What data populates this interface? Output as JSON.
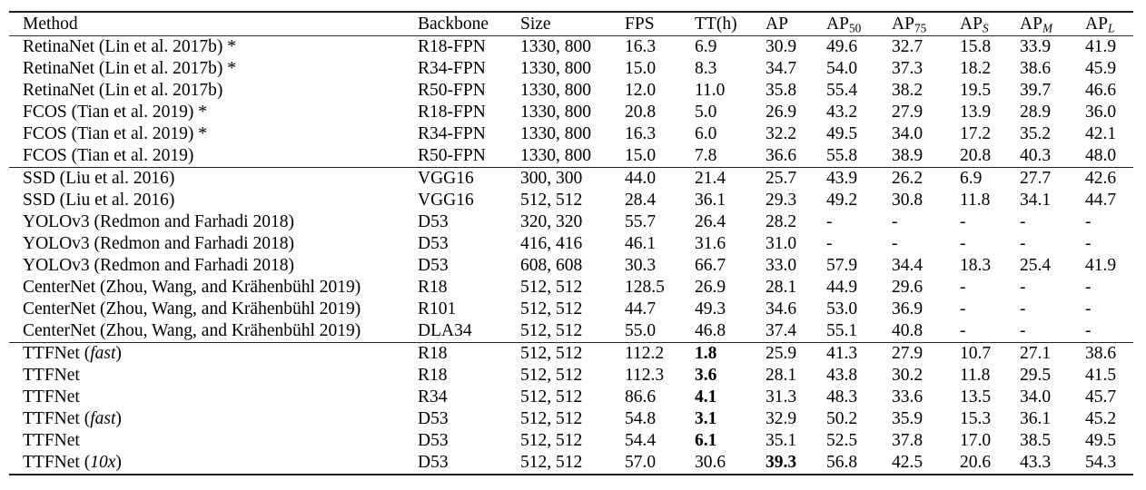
{
  "table": {
    "columns": [
      {
        "key": "method",
        "label": "Method"
      },
      {
        "key": "backbone",
        "label": "Backbone"
      },
      {
        "key": "size",
        "label": "Size"
      },
      {
        "key": "fps",
        "label": "FPS"
      },
      {
        "key": "tt",
        "label": "TT(h)"
      },
      {
        "key": "ap",
        "label": "AP"
      },
      {
        "key": "ap50",
        "label": "AP",
        "sub": "50",
        "sub_italic": false
      },
      {
        "key": "ap75",
        "label": "AP",
        "sub": "75",
        "sub_italic": false
      },
      {
        "key": "aps",
        "label": "AP",
        "sub": "S",
        "sub_italic": true
      },
      {
        "key": "apm",
        "label": "AP",
        "sub": "M",
        "sub_italic": true
      },
      {
        "key": "apl",
        "label": "AP",
        "sub": "L",
        "sub_italic": true
      }
    ],
    "groups": [
      {
        "rows": [
          {
            "method": [
              {
                "t": "RetinaNet (Lin et al. 2017b) *"
              }
            ],
            "cells": [
              "R18-FPN",
              "1330, 800",
              "16.3",
              "6.9",
              "30.9",
              "49.6",
              "32.7",
              "15.8",
              "33.9",
              "41.9"
            ],
            "bold_cells": []
          },
          {
            "method": [
              {
                "t": "RetinaNet (Lin et al. 2017b) *"
              }
            ],
            "cells": [
              "R34-FPN",
              "1330, 800",
              "15.0",
              "8.3",
              "34.7",
              "54.0",
              "37.3",
              "18.2",
              "38.6",
              "45.9"
            ],
            "bold_cells": []
          },
          {
            "method": [
              {
                "t": "RetinaNet (Lin et al. 2017b)"
              }
            ],
            "cells": [
              "R50-FPN",
              "1330, 800",
              "12.0",
              "11.0",
              "35.8",
              "55.4",
              "38.2",
              "19.5",
              "39.7",
              "46.6"
            ],
            "bold_cells": []
          },
          {
            "method": [
              {
                "t": "FCOS (Tian et al. 2019) *"
              }
            ],
            "cells": [
              "R18-FPN",
              "1330, 800",
              "20.8",
              "5.0",
              "26.9",
              "43.2",
              "27.9",
              "13.9",
              "28.9",
              "36.0"
            ],
            "bold_cells": []
          },
          {
            "method": [
              {
                "t": "FCOS (Tian et al. 2019) *"
              }
            ],
            "cells": [
              "R34-FPN",
              "1330, 800",
              "16.3",
              "6.0",
              "32.2",
              "49.5",
              "34.0",
              "17.2",
              "35.2",
              "42.1"
            ],
            "bold_cells": []
          },
          {
            "method": [
              {
                "t": "FCOS (Tian et al. 2019)"
              }
            ],
            "cells": [
              "R50-FPN",
              "1330, 800",
              "15.0",
              "7.8",
              "36.6",
              "55.8",
              "38.9",
              "20.8",
              "40.3",
              "48.0"
            ],
            "bold_cells": []
          }
        ]
      },
      {
        "rows": [
          {
            "method": [
              {
                "t": "SSD (Liu et al. 2016)"
              }
            ],
            "cells": [
              "VGG16",
              "300, 300",
              "44.0",
              "21.4",
              "25.7",
              "43.9",
              "26.2",
              "6.9",
              "27.7",
              "42.6"
            ],
            "bold_cells": []
          },
          {
            "method": [
              {
                "t": "SSD (Liu et al. 2016)"
              }
            ],
            "cells": [
              "VGG16",
              "512, 512",
              "28.4",
              "36.1",
              "29.3",
              "49.2",
              "30.8",
              "11.8",
              "34.1",
              "44.7"
            ],
            "bold_cells": []
          },
          {
            "method": [
              {
                "t": "YOLOv3 (Redmon and Farhadi 2018)"
              }
            ],
            "cells": [
              "D53",
              "320, 320",
              "55.7",
              "26.4",
              "28.2",
              "-",
              "-",
              "-",
              "-",
              "-"
            ],
            "bold_cells": []
          },
          {
            "method": [
              {
                "t": "YOLOv3 (Redmon and Farhadi 2018)"
              }
            ],
            "cells": [
              "D53",
              "416, 416",
              "46.1",
              "31.6",
              "31.0",
              "-",
              "-",
              "-",
              "-",
              "-"
            ],
            "bold_cells": []
          },
          {
            "method": [
              {
                "t": "YOLOv3 (Redmon and Farhadi 2018)"
              }
            ],
            "cells": [
              "D53",
              "608, 608",
              "30.3",
              "66.7",
              "33.0",
              "57.9",
              "34.4",
              "18.3",
              "25.4",
              "41.9"
            ],
            "bold_cells": []
          },
          {
            "method": [
              {
                "t": "CenterNet (Zhou, Wang, and Krähenbühl 2019)"
              }
            ],
            "cells": [
              "R18",
              "512, 512",
              "128.5",
              "26.9",
              "28.1",
              "44.9",
              "29.6",
              "-",
              "-",
              "-"
            ],
            "bold_cells": []
          },
          {
            "method": [
              {
                "t": "CenterNet (Zhou, Wang, and Krähenbühl 2019)"
              }
            ],
            "cells": [
              "R101",
              "512, 512",
              "44.7",
              "49.3",
              "34.6",
              "53.0",
              "36.9",
              "-",
              "-",
              "-"
            ],
            "bold_cells": []
          },
          {
            "method": [
              {
                "t": "CenterNet (Zhou, Wang, and Krähenbühl 2019)"
              }
            ],
            "cells": [
              "DLA34",
              "512, 512",
              "55.0",
              "46.8",
              "37.4",
              "55.1",
              "40.8",
              "-",
              "-",
              "-"
            ],
            "bold_cells": []
          }
        ]
      },
      {
        "rows": [
          {
            "method": [
              {
                "t": "TTFNet ("
              },
              {
                "t": "fast",
                "i": true
              },
              {
                "t": ")"
              }
            ],
            "cells": [
              "R18",
              "512, 512",
              "112.2",
              "1.8",
              "25.9",
              "41.3",
              "27.9",
              "10.7",
              "27.1",
              "38.6"
            ],
            "bold_cells": [
              3
            ]
          },
          {
            "method": [
              {
                "t": "TTFNet"
              }
            ],
            "cells": [
              "R18",
              "512, 512",
              "112.3",
              "3.6",
              "28.1",
              "43.8",
              "30.2",
              "11.8",
              "29.5",
              "41.5"
            ],
            "bold_cells": [
              3
            ]
          },
          {
            "method": [
              {
                "t": "TTFNet"
              }
            ],
            "cells": [
              "R34",
              "512, 512",
              "86.6",
              "4.1",
              "31.3",
              "48.3",
              "33.6",
              "13.5",
              "34.0",
              "45.7"
            ],
            "bold_cells": [
              3
            ]
          },
          {
            "method": [
              {
                "t": "TTFNet ("
              },
              {
                "t": "fast",
                "i": true
              },
              {
                "t": ")"
              }
            ],
            "cells": [
              "D53",
              "512, 512",
              "54.8",
              "3.1",
              "32.9",
              "50.2",
              "35.9",
              "15.3",
              "36.1",
              "45.2"
            ],
            "bold_cells": [
              3
            ]
          },
          {
            "method": [
              {
                "t": "TTFNet"
              }
            ],
            "cells": [
              "D53",
              "512, 512",
              "54.4",
              "6.1",
              "35.1",
              "52.5",
              "37.8",
              "17.0",
              "38.5",
              "49.5"
            ],
            "bold_cells": [
              3
            ]
          },
          {
            "method": [
              {
                "t": "TTFNet ("
              },
              {
                "t": "10x",
                "i": true
              },
              {
                "t": ")"
              }
            ],
            "cells": [
              "D53",
              "512, 512",
              "57.0",
              "30.6",
              "39.3",
              "56.8",
              "42.5",
              "20.6",
              "43.3",
              "54.3"
            ],
            "bold_cells": [
              4
            ]
          }
        ]
      }
    ]
  }
}
